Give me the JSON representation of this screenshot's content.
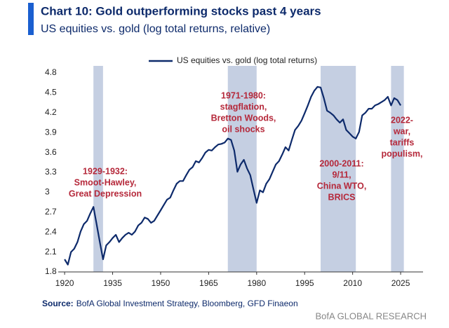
{
  "chart_data": {
    "type": "line",
    "title": "Chart 10: Gold outperforming stocks past 4 years",
    "subtitle": "US equities vs. gold (log total returns, relative)",
    "source_label": "Source:",
    "source_text": "BofA Global Investment Strategy, Bloomberg, GFD Finaeon",
    "branding": "BofA GLOBAL RESEARCH",
    "legend_position": "top",
    "grid": false,
    "x": [
      1920,
      1921,
      1922,
      1923,
      1924,
      1925,
      1926,
      1927,
      1928,
      1929,
      1930,
      1931,
      1932,
      1933,
      1934,
      1935,
      1936,
      1937,
      1938,
      1939,
      1940,
      1941,
      1942,
      1943,
      1944,
      1945,
      1946,
      1947,
      1948,
      1949,
      1950,
      1951,
      1952,
      1953,
      1954,
      1955,
      1956,
      1957,
      1958,
      1959,
      1960,
      1961,
      1962,
      1963,
      1964,
      1965,
      1966,
      1967,
      1968,
      1969,
      1970,
      1971,
      1972,
      1973,
      1974,
      1975,
      1976,
      1977,
      1978,
      1979,
      1980,
      1981,
      1982,
      1983,
      1984,
      1985,
      1986,
      1987,
      1988,
      1989,
      1990,
      1991,
      1992,
      1993,
      1994,
      1995,
      1996,
      1997,
      1998,
      1999,
      2000,
      2001,
      2002,
      2003,
      2004,
      2005,
      2006,
      2007,
      2008,
      2009,
      2010,
      2011,
      2012,
      2013,
      2014,
      2015,
      2016,
      2017,
      2018,
      2019,
      2020,
      2021,
      2022,
      2023,
      2024,
      2025
    ],
    "series": [
      {
        "name": "US equities vs. gold (log total returns)",
        "color": "#0d2a6b",
        "values": [
          1.99,
          1.91,
          2.1,
          2.15,
          2.25,
          2.41,
          2.52,
          2.57,
          2.68,
          2.78,
          2.52,
          2.25,
          1.99,
          2.2,
          2.25,
          2.31,
          2.36,
          2.25,
          2.31,
          2.36,
          2.39,
          2.36,
          2.41,
          2.5,
          2.54,
          2.62,
          2.6,
          2.54,
          2.57,
          2.65,
          2.73,
          2.81,
          2.89,
          2.92,
          3.03,
          3.13,
          3.17,
          3.17,
          3.26,
          3.34,
          3.38,
          3.47,
          3.45,
          3.52,
          3.6,
          3.64,
          3.63,
          3.68,
          3.72,
          3.73,
          3.75,
          3.81,
          3.79,
          3.63,
          3.31,
          3.42,
          3.49,
          3.36,
          3.26,
          3.05,
          2.84,
          3.03,
          3.0,
          3.13,
          3.2,
          3.31,
          3.42,
          3.47,
          3.57,
          3.68,
          3.63,
          3.79,
          3.94,
          4.0,
          4.08,
          4.19,
          4.31,
          4.44,
          4.53,
          4.59,
          4.58,
          4.42,
          4.23,
          4.2,
          4.16,
          4.1,
          4.05,
          4.1,
          3.94,
          3.89,
          3.84,
          3.81,
          3.91,
          4.16,
          4.2,
          4.26,
          4.26,
          4.31,
          4.33,
          4.36,
          4.39,
          4.44,
          4.31,
          4.42,
          4.39,
          4.31
        ]
      }
    ],
    "xlim": [
      1918,
      2032
    ],
    "ylim": [
      1.8,
      4.8
    ],
    "xticks": [
      1920,
      1935,
      1950,
      1965,
      1980,
      1995,
      2010,
      2025
    ],
    "yticks": [
      1.8,
      2.1,
      2.4,
      2.7,
      3.0,
      3.3,
      3.6,
      3.9,
      4.2,
      4.5,
      4.8
    ],
    "shaded_color": "#c5cfe2",
    "shaded_spans": [
      {
        "start": 1929,
        "end": 1932,
        "label": [
          "1929-1932:",
          "Smoot-Hawley,",
          "Great Depression"
        ]
      },
      {
        "start": 1971,
        "end": 1980,
        "label": [
          "1971-1980:",
          "stagflation,",
          "Bretton Woods,",
          "oil shocks"
        ]
      },
      {
        "start": 2000,
        "end": 2011,
        "label": [
          "2000-2011:",
          "9/11,",
          "China WTO,",
          "BRICS"
        ]
      },
      {
        "start": 2022,
        "end": 2026,
        "label": [
          "2022-",
          "war,",
          "tariffs",
          "populism,"
        ]
      }
    ]
  }
}
